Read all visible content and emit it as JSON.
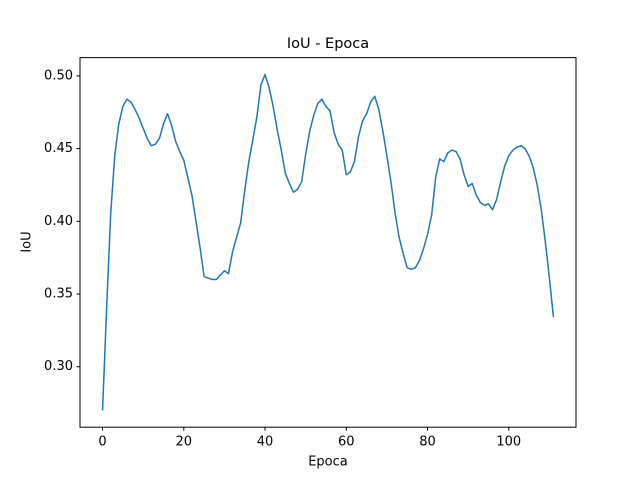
{
  "chart_data": {
    "type": "line",
    "title": "IoU - Epoca",
    "x_label": "Epoca",
    "y_label": "IoU",
    "color": "#1f77b4",
    "x": [
      0,
      1,
      2,
      3,
      4,
      5,
      6,
      7,
      8,
      9,
      10,
      11,
      12,
      13,
      14,
      15,
      16,
      17,
      18,
      19,
      20,
      21,
      22,
      23,
      24,
      25,
      26,
      27,
      28,
      29,
      30,
      31,
      32,
      33,
      34,
      35,
      36,
      37,
      38,
      39,
      40,
      41,
      42,
      43,
      44,
      45,
      46,
      47,
      48,
      49,
      50,
      51,
      52,
      53,
      54,
      55,
      56,
      57,
      58,
      59,
      60,
      61,
      62,
      63,
      64,
      65,
      66,
      67,
      68,
      69,
      70,
      71,
      72,
      73,
      74,
      75,
      76,
      77,
      78,
      79,
      80,
      81,
      82,
      83,
      84,
      85,
      86,
      87,
      88,
      89,
      90,
      91,
      92,
      93,
      94,
      95,
      96,
      97,
      98,
      99,
      100,
      101,
      102,
      103,
      104,
      105,
      106,
      107,
      108,
      109,
      110,
      111
    ],
    "values": [
      0.27,
      0.34,
      0.405,
      0.445,
      0.467,
      0.479,
      0.484,
      0.482,
      0.477,
      0.471,
      0.464,
      0.457,
      0.452,
      0.453,
      0.457,
      0.467,
      0.474,
      0.466,
      0.455,
      0.448,
      0.442,
      0.43,
      0.418,
      0.4,
      0.382,
      0.362,
      0.361,
      0.36,
      0.36,
      0.363,
      0.366,
      0.364,
      0.379,
      0.389,
      0.399,
      0.421,
      0.441,
      0.456,
      0.472,
      0.494,
      0.501,
      0.492,
      0.479,
      0.463,
      0.449,
      0.433,
      0.426,
      0.42,
      0.422,
      0.427,
      0.446,
      0.462,
      0.473,
      0.481,
      0.484,
      0.479,
      0.476,
      0.461,
      0.453,
      0.449,
      0.432,
      0.434,
      0.441,
      0.458,
      0.469,
      0.474,
      0.482,
      0.486,
      0.477,
      0.462,
      0.445,
      0.427,
      0.406,
      0.389,
      0.378,
      0.368,
      0.367,
      0.368,
      0.373,
      0.381,
      0.391,
      0.404,
      0.43,
      0.443,
      0.441,
      0.447,
      0.449,
      0.448,
      0.443,
      0.432,
      0.424,
      0.426,
      0.418,
      0.413,
      0.411,
      0.412,
      0.408,
      0.415,
      0.427,
      0.438,
      0.445,
      0.449,
      0.451,
      0.452,
      0.45,
      0.445,
      0.437,
      0.425,
      0.408,
      0.386,
      0.361,
      0.334
    ],
    "xlim": [
      -5.55,
      116.55
    ],
    "ylim": [
      0.2584,
      0.5126
    ],
    "xticks": [
      0,
      20,
      40,
      60,
      80,
      100
    ],
    "yticks": [
      {
        "value": 0.3,
        "label": "0.30"
      },
      0.35,
      {
        "value": 0.4,
        "label": "0.40"
      },
      0.45,
      {
        "value": 0.5,
        "label": "0.50"
      }
    ]
  }
}
